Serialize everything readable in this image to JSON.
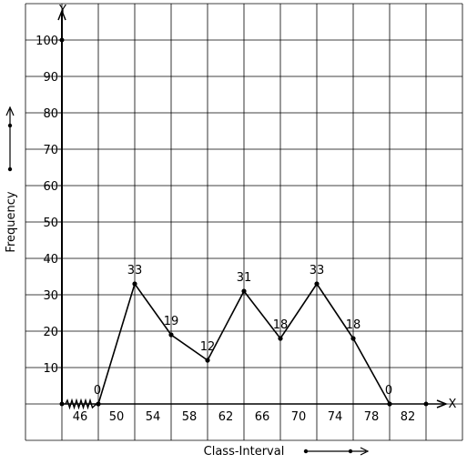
{
  "chart_data": {
    "type": "line",
    "title": "",
    "xlabel": "Class-Interval",
    "ylabel": "Frequency",
    "x_axis_name": "X",
    "y_axis_name": "Y",
    "xlim": [
      44,
      84
    ],
    "ylim": [
      -10,
      110
    ],
    "x_ticks": [
      46,
      50,
      54,
      58,
      62,
      66,
      70,
      74,
      78,
      82
    ],
    "y_ticks": [
      10,
      20,
      30,
      40,
      50,
      60,
      70,
      80,
      90,
      100
    ],
    "grid": true,
    "axis_break": true,
    "series": [
      {
        "x": [
          48,
          52,
          56,
          60,
          64,
          68,
          72,
          76,
          80
        ],
        "y": [
          0,
          33,
          19,
          12,
          31,
          18,
          33,
          18,
          0
        ],
        "labels": [
          "0",
          "33",
          "19",
          "12",
          "31",
          "18",
          "33",
          "18",
          "0"
        ]
      }
    ]
  }
}
